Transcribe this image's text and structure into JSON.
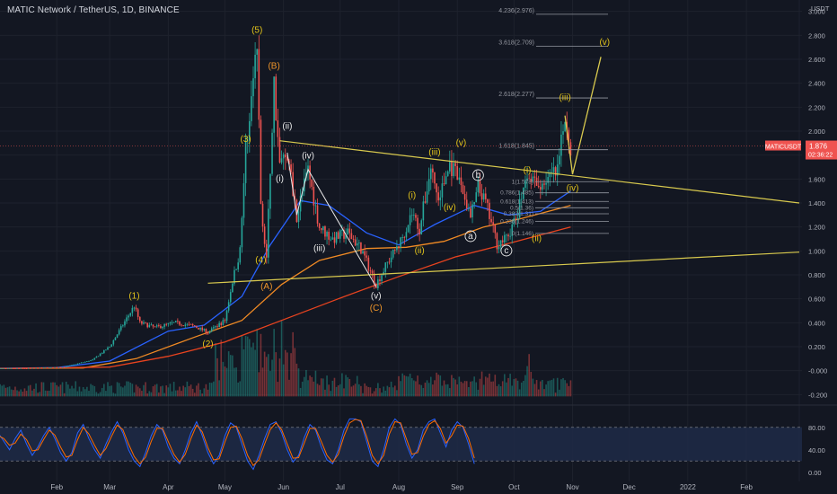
{
  "header": {
    "title": "MATIC Network / TetherUS, 1D, BINANCE"
  },
  "colors": {
    "background": "#131722",
    "candle_up": "#26a69a",
    "candle_down": "#ef5350",
    "ma_blue": "#2962ff",
    "ma_orange": "#f08a24",
    "ma_red": "#e8431f",
    "trendline": "#d8c94e",
    "wave_yellow": "#e3c41b",
    "wave_orange": "#f0962a",
    "wave_white": "#e8e8e8",
    "fib": "#9598a1",
    "stoch_k": "#2962ff",
    "stoch_d": "#ff6d00",
    "stoch_band": "#1e2a46"
  },
  "chart_data": [
    {
      "type": "candlestick",
      "symbol": "MATICUSDT",
      "last_price_label": "1.876",
      "countdown_label": "02:36:22",
      "currency_label": "USDT",
      "y_axis_ticks": [
        "3.000",
        "2.800",
        "2.600",
        "2.400",
        "2.200",
        "2.000",
        "1.800",
        "1.600",
        "1.400",
        "1.200",
        "1.000",
        "0.800",
        "0.600",
        "0.400",
        "0.200",
        "-0.000",
        "-0.200"
      ],
      "ylim": [
        -0.25,
        3.05
      ],
      "x_axis_ticks": [
        "Feb",
        "Mar",
        "Apr",
        "May",
        "Jun",
        "Jul",
        "Aug",
        "Sep",
        "Oct",
        "Nov",
        "Dec",
        "2022",
        "Feb"
      ],
      "price_path": [
        [
          "2021-01-01",
          0.018
        ],
        [
          "2021-01-20",
          0.02
        ],
        [
          "2021-02-05",
          0.03
        ],
        [
          "2021-02-20",
          0.09
        ],
        [
          "2021-03-01",
          0.2
        ],
        [
          "2021-03-14",
          0.54
        ],
        [
          "2021-03-17",
          0.4
        ],
        [
          "2021-03-25",
          0.36
        ],
        [
          "2021-04-05",
          0.4
        ],
        [
          "2021-04-15",
          0.37
        ],
        [
          "2021-04-22",
          0.32
        ],
        [
          "2021-05-01",
          0.42
        ],
        [
          "2021-05-05",
          0.75
        ],
        [
          "2021-05-09",
          1.0
        ],
        [
          "2021-05-12",
          1.85
        ],
        [
          "2021-05-18",
          2.7
        ],
        [
          "2021-05-20",
          1.4
        ],
        [
          "2021-05-23",
          0.95
        ],
        [
          "2021-05-27",
          2.4
        ],
        [
          "2021-05-30",
          1.72
        ],
        [
          "2021-06-03",
          1.82
        ],
        [
          "2021-06-08",
          1.3
        ],
        [
          "2021-06-14",
          1.68
        ],
        [
          "2021-06-20",
          1.2
        ],
        [
          "2021-06-27",
          1.1
        ],
        [
          "2021-07-05",
          1.15
        ],
        [
          "2021-07-12",
          1.02
        ],
        [
          "2021-07-20",
          0.72
        ],
        [
          "2021-07-26",
          0.9
        ],
        [
          "2021-08-02",
          1.08
        ],
        [
          "2021-08-08",
          1.32
        ],
        [
          "2021-08-12",
          1.18
        ],
        [
          "2021-08-18",
          1.7
        ],
        [
          "2021-08-22",
          1.42
        ],
        [
          "2021-08-28",
          1.72
        ],
        [
          "2021-09-03",
          1.55
        ],
        [
          "2021-09-08",
          1.28
        ],
        [
          "2021-09-12",
          1.52
        ],
        [
          "2021-09-16",
          1.4
        ],
        [
          "2021-09-22",
          1.06
        ],
        [
          "2021-09-27",
          1.1
        ],
        [
          "2021-10-03",
          1.3
        ],
        [
          "2021-10-08",
          1.68
        ],
        [
          "2021-10-13",
          1.52
        ],
        [
          "2021-10-18",
          1.6
        ],
        [
          "2021-10-24",
          1.65
        ],
        [
          "2021-10-28",
          2.13
        ],
        [
          "2021-10-31",
          1.876
        ]
      ],
      "moving_averages": [
        {
          "color": "#2962ff",
          "values": [
            [
              "2021-01-01",
              0.02
            ],
            [
              "2021-02-01",
              0.025
            ],
            [
              "2021-03-01",
              0.08
            ],
            [
              "2021-04-01",
              0.33
            ],
            [
              "2021-04-20",
              0.38
            ],
            [
              "2021-05-10",
              0.62
            ],
            [
              "2021-05-25",
              1.05
            ],
            [
              "2021-06-10",
              1.42
            ],
            [
              "2021-06-25",
              1.38
            ],
            [
              "2021-07-15",
              1.15
            ],
            [
              "2021-08-01",
              1.05
            ],
            [
              "2021-08-20",
              1.22
            ],
            [
              "2021-09-10",
              1.38
            ],
            [
              "2021-09-28",
              1.3
            ],
            [
              "2021-10-15",
              1.33
            ],
            [
              "2021-10-31",
              1.5
            ]
          ]
        },
        {
          "color": "#f08a24",
          "values": [
            [
              "2021-01-01",
              0.018
            ],
            [
              "2021-02-15",
              0.022
            ],
            [
              "2021-03-15",
              0.1
            ],
            [
              "2021-04-15",
              0.28
            ],
            [
              "2021-05-10",
              0.42
            ],
            [
              "2021-05-31",
              0.72
            ],
            [
              "2021-06-20",
              0.92
            ],
            [
              "2021-07-15",
              1.02
            ],
            [
              "2021-08-05",
              1.03
            ],
            [
              "2021-08-25",
              1.08
            ],
            [
              "2021-09-15",
              1.2
            ],
            [
              "2021-10-05",
              1.27
            ],
            [
              "2021-10-31",
              1.38
            ]
          ]
        },
        {
          "color": "#e8431f",
          "values": [
            [
              "2021-01-01",
              0.018
            ],
            [
              "2021-03-01",
              0.03
            ],
            [
              "2021-04-01",
              0.12
            ],
            [
              "2021-05-01",
              0.24
            ],
            [
              "2021-05-31",
              0.42
            ],
            [
              "2021-06-30",
              0.6
            ],
            [
              "2021-07-31",
              0.78
            ],
            [
              "2021-08-31",
              0.95
            ],
            [
              "2021-09-30",
              1.07
            ],
            [
              "2021-10-31",
              1.2
            ]
          ]
        }
      ],
      "trendlines": [
        {
          "from": [
            "2021-04-22",
            0.73
          ],
          "to": [
            "2022-03-01",
            0.99
          ]
        },
        {
          "from": [
            "2021-05-30",
            1.92
          ],
          "to": [
            "2022-03-01",
            1.4
          ]
        }
      ],
      "projection": [
        [
          "2021-10-28",
          2.13
        ],
        [
          "2021-11-01",
          1.64
        ],
        [
          "2021-11-16",
          2.62
        ]
      ],
      "impulse_lines": [
        [
          [
            "2021-06-03",
            1.82
          ],
          [
            "2021-06-08",
            1.3
          ],
          [
            "2021-06-14",
            1.68
          ],
          [
            "2021-07-20",
            0.7
          ]
        ]
      ],
      "fib_levels_upper": [
        {
          "label": "4.236(2.976)",
          "value": 2.976
        },
        {
          "label": "3.618(2.709)",
          "value": 2.709
        },
        {
          "label": "2.618(2.277)",
          "value": 2.277
        },
        {
          "label": "1.618(1.845)",
          "value": 1.845
        }
      ],
      "fib_levels_lower": [
        {
          "label": "1(1.578)",
          "value": 1.578
        },
        {
          "label": "0.786(1.485)",
          "value": 1.485
        },
        {
          "label": "0.618(1.413)",
          "value": 1.413
        },
        {
          "label": "0.5(1.36)",
          "value": 1.36
        },
        {
          "label": "0.382(1.31)",
          "value": 1.31
        },
        {
          "label": "0.236(1.246)",
          "value": 1.246
        },
        {
          "label": "0(1.146)",
          "value": 1.146
        }
      ],
      "wave_labels": [
        {
          "text": "(1)",
          "at": [
            "2021-03-14",
            0.6
          ],
          "color": "#e3c41b"
        },
        {
          "text": "(2)",
          "at": [
            "2021-04-22",
            0.2
          ],
          "color": "#e3c41b"
        },
        {
          "text": "(3)",
          "at": [
            "2021-05-12",
            1.91
          ],
          "color": "#e3c41b"
        },
        {
          "text": "(4)",
          "at": [
            "2021-05-20",
            0.9
          ],
          "color": "#e3c41b"
        },
        {
          "text": "(5)",
          "at": [
            "2021-05-18",
            2.82
          ],
          "color": "#e3c41b"
        },
        {
          "text": "(B)",
          "at": [
            "2021-05-27",
            2.52
          ],
          "color": "#f0962a"
        },
        {
          "text": "(A)",
          "at": [
            "2021-05-23",
            0.68
          ],
          "color": "#f0962a"
        },
        {
          "text": "(C)",
          "at": [
            "2021-07-20",
            0.5
          ],
          "color": "#f0962a"
        },
        {
          "text": "(i)",
          "at": [
            "2021-05-30",
            1.58
          ],
          "color": "#e8e8e8"
        },
        {
          "text": "(ii)",
          "at": [
            "2021-06-03",
            2.02
          ],
          "color": "#e8e8e8"
        },
        {
          "text": "(iii)",
          "at": [
            "2021-06-20",
            1.0
          ],
          "color": "#e8e8e8"
        },
        {
          "text": "(iv)",
          "at": [
            "2021-06-14",
            1.77
          ],
          "color": "#e8e8e8"
        },
        {
          "text": "(v)",
          "at": [
            "2021-07-20",
            0.6
          ],
          "color": "#e8e8e8"
        },
        {
          "text": "(i)",
          "at": [
            "2021-08-08",
            1.44
          ],
          "color": "#e3c41b"
        },
        {
          "text": "(ii)",
          "at": [
            "2021-08-12",
            0.98
          ],
          "color": "#e3c41b"
        },
        {
          "text": "(iii)",
          "at": [
            "2021-08-20",
            1.8
          ],
          "color": "#e3c41b"
        },
        {
          "text": "(iv)",
          "at": [
            "2021-08-28",
            1.34
          ],
          "color": "#e3c41b"
        },
        {
          "text": "(v)",
          "at": [
            "2021-09-03",
            1.88
          ],
          "color": "#e3c41b"
        },
        {
          "text": "a",
          "at": [
            "2021-09-08",
            1.1
          ],
          "color": "#e8e8e8"
        },
        {
          "text": "b",
          "at": [
            "2021-09-12",
            1.61
          ],
          "color": "#e8e8e8"
        },
        {
          "text": "c",
          "at": [
            "2021-09-27",
            0.98
          ],
          "color": "#e8e8e8"
        },
        {
          "text": "(i)",
          "at": [
            "2021-10-08",
            1.65
          ],
          "color": "#e3c41b"
        },
        {
          "text": "(ii)",
          "at": [
            "2021-10-13",
            1.08
          ],
          "color": "#e3c41b"
        },
        {
          "text": "(iii)",
          "at": [
            "2021-10-28",
            2.26
          ],
          "color": "#e3c41b"
        },
        {
          "text": "(iv)",
          "at": [
            "2021-11-01",
            1.5
          ],
          "color": "#e3c41b"
        },
        {
          "text": "(v)",
          "at": [
            "2021-11-18",
            2.72
          ],
          "color": "#e3c41b"
        }
      ]
    },
    {
      "type": "line",
      "name": "stochastic_rsi",
      "y_axis_ticks": [
        "80.00",
        "40.00",
        "0.00"
      ],
      "ylim": [
        -10,
        110
      ],
      "bands": [
        80,
        20
      ],
      "x_start": "2021-01-01",
      "x_step_days": 3,
      "series": [
        {
          "color": "#2962ff",
          "values": [
            70,
            55,
            40,
            60,
            75,
            50,
            30,
            45,
            65,
            80,
            60,
            35,
            20,
            35,
            70,
            85,
            60,
            40,
            25,
            50,
            72,
            90,
            70,
            40,
            20,
            10,
            35,
            65,
            85,
            75,
            45,
            25,
            15,
            40,
            70,
            90,
            65,
            35,
            15,
            30,
            65,
            88,
            80,
            50,
            20,
            5,
            30,
            60,
            85,
            90,
            70,
            40,
            18,
            30,
            62,
            85,
            75,
            45,
            22,
            15,
            40,
            75,
            95,
            95,
            90,
            55,
            20,
            10,
            40,
            80,
            95,
            85,
            50,
            25,
            40,
            75,
            90,
            95,
            70,
            45,
            75,
            90,
            80,
            50,
            15
          ]
        },
        {
          "color": "#ff6d00",
          "values": [
            65,
            60,
            48,
            52,
            68,
            58,
            38,
            40,
            58,
            75,
            66,
            45,
            27,
            30,
            58,
            80,
            68,
            48,
            30,
            42,
            64,
            84,
            76,
            50,
            28,
            15,
            27,
            55,
            78,
            78,
            55,
            32,
            18,
            32,
            60,
            84,
            72,
            44,
            22,
            24,
            54,
            80,
            82,
            60,
            30,
            12,
            22,
            50,
            76,
            88,
            76,
            50,
            25,
            26,
            52,
            78,
            78,
            55,
            30,
            18,
            32,
            64,
            88,
            94,
            92,
            64,
            30,
            15,
            30,
            68,
            90,
            88,
            60,
            32,
            35,
            64,
            85,
            92,
            78,
            52,
            65,
            84,
            82,
            60,
            25
          ]
        }
      ]
    }
  ]
}
